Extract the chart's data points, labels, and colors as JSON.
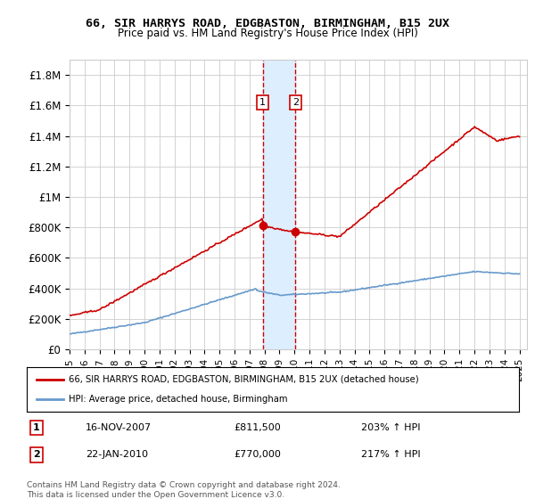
{
  "title1": "66, SIR HARRYS ROAD, EDGBASTON, BIRMINGHAM, B15 2UX",
  "title2": "Price paid vs. HM Land Registry's House Price Index (HPI)",
  "ylabel_ticks": [
    "£0",
    "£200K",
    "£400K",
    "£600K",
    "£800K",
    "£1M",
    "£1.2M",
    "£1.4M",
    "£1.6M",
    "£1.8M"
  ],
  "ytick_values": [
    0,
    200000,
    400000,
    600000,
    800000,
    1000000,
    1200000,
    1400000,
    1600000,
    1800000
  ],
  "ylim": [
    0,
    1900000
  ],
  "year_start": 1995,
  "year_end": 2025,
  "transaction1": {
    "date_num": 2007.88,
    "price": 811500,
    "label": "1"
  },
  "transaction2": {
    "date_num": 2010.06,
    "price": 770000,
    "label": "2"
  },
  "red_line_color": "#cc0000",
  "blue_line_color": "#6699cc",
  "vline_color": "#cc0000",
  "highlight_color": "#ddeeff",
  "legend_line1": "66, SIR HARRYS ROAD, EDGBASTON, BIRMINGHAM, B15 2UX (detached house)",
  "legend_line2": "HPI: Average price, detached house, Birmingham",
  "table_rows": [
    {
      "num": "1",
      "date": "16-NOV-2007",
      "price": "£811,500",
      "hpi": "203% ↑ HPI"
    },
    {
      "num": "2",
      "date": "22-JAN-2010",
      "price": "£770,000",
      "hpi": "217% ↑ HPI"
    }
  ],
  "footer": "Contains HM Land Registry data © Crown copyright and database right 2024.\nThis data is licensed under the Open Government Licence v3.0.",
  "background_color": "#ffffff",
  "grid_color": "#cccccc"
}
